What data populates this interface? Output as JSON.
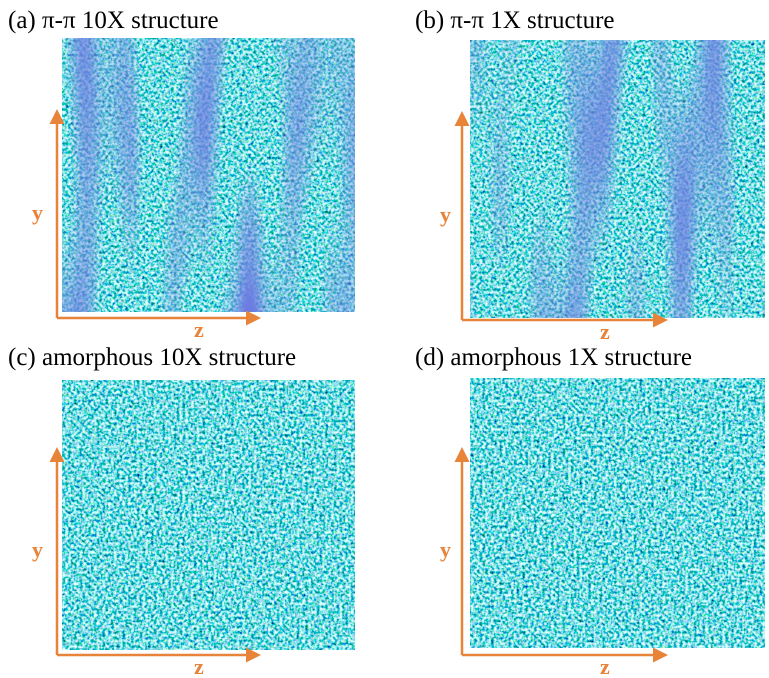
{
  "panels": [
    {
      "title": "(a) π-π 10X structure",
      "x_axis": "z",
      "y_axis": "y"
    },
    {
      "title": "(b) π-π 1X structure",
      "x_axis": "z",
      "y_axis": "y"
    },
    {
      "title": "(c) amorphous 10X structure",
      "x_axis": "z",
      "y_axis": "y"
    },
    {
      "title": "(d) amorphous 1X structure",
      "x_axis": "z",
      "y_axis": "y"
    }
  ]
}
